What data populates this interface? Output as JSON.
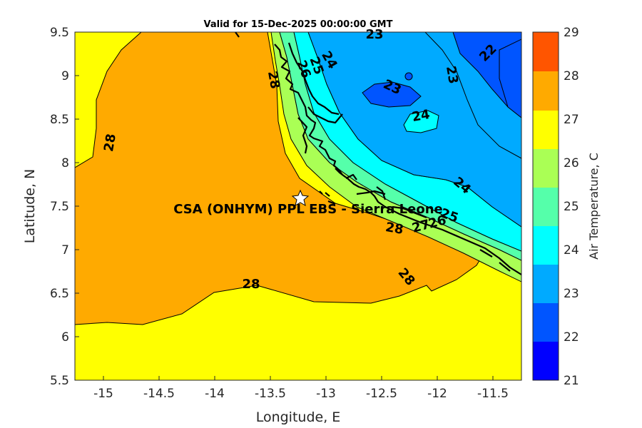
{
  "title": "Valid for 15-Dec-2025 00:00:00 GMT",
  "xlabel": "Longitude, E",
  "ylabel": "Latitude, N",
  "colorbar_label": "Air Temperature, C",
  "site_label": "CSA (ONHYM) PPL EBS  - Sierra Leone",
  "x_ticks": [
    "-15",
    "-14.5",
    "-14",
    "-13.5",
    "-13",
    "-12.5",
    "-12",
    "-11.5"
  ],
  "y_ticks": [
    "9.5",
    "9",
    "8.5",
    "8",
    "7.5",
    "7",
    "6.5",
    "6",
    "5.5"
  ],
  "colorbar_ticks": [
    "29",
    "28",
    "27",
    "26",
    "25",
    "24",
    "23",
    "22",
    "21"
  ],
  "colors": {
    "c21_22": "#0000ff",
    "c22_23": "#0055ff",
    "c23_24": "#00aaff",
    "c24_25": "#00ffff",
    "c25_26": "#55ffaa",
    "c26_27": "#aaff55",
    "c27_28": "#ffff00",
    "c28_29": "#ffaa00",
    "c29_30": "#ff5500"
  },
  "contour_labels": {
    "l23_top": "23",
    "l22": "22",
    "l23_right": "23",
    "l23_mid": "23",
    "l24_top": "24",
    "l25_top": "25",
    "l26_top": "26",
    "l24_island": "24",
    "l24_right": "24",
    "l28_a": "28",
    "l28_b": "28",
    "l28_c": "28",
    "l28_d": "28",
    "l28_e": "28",
    "l27_coast": "27",
    "l26_coast": "26",
    "l25_coast": "25"
  },
  "chart_data": {
    "type": "heatmap",
    "title": "Valid for 15-Dec-2025 00:00:00 GMT",
    "xlabel": "Longitude, E",
    "ylabel": "Latitude, N",
    "xlim": [
      -15.25,
      -11.25
    ],
    "ylim": [
      5.5,
      9.5
    ],
    "colorbar": {
      "label": "Air Temperature, C",
      "range": [
        21,
        29
      ],
      "levels": [
        21,
        22,
        23,
        24,
        25,
        26,
        27,
        28,
        29
      ]
    },
    "marker": {
      "name": "CSA (ONHYM) PPL EBS  - Sierra Leone",
      "lon": -13.22,
      "lat": 7.6
    },
    "contour_levels_labeled": [
      22,
      23,
      24,
      25,
      26,
      27,
      28
    ]
  }
}
